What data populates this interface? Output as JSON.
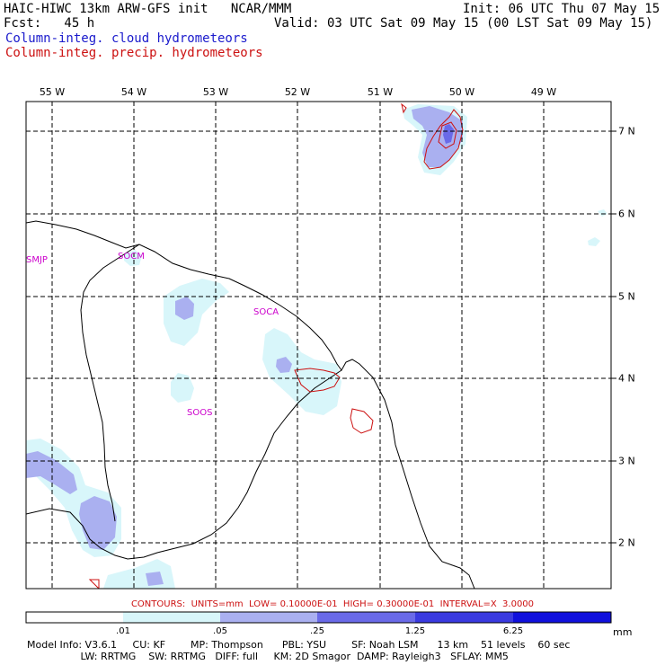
{
  "header": {
    "model_title": "HAIC-HIWC 13km ARW-GFS init   NCAR/MMM",
    "fcst": "Fcst:   45 h",
    "init": "Init: 06 UTC Thu 07 May 15",
    "valid": "Valid: 03 UTC Sat 09 May 15 (00 LST Sat 09 May 15)",
    "field_cloud": "Column-integ. cloud hydrometeors",
    "field_precip": "Column-integ. precip. hydrometeors"
  },
  "colors": {
    "cloud_text": "#1a1acc",
    "precip_text": "#cc1010",
    "shade_level_1": "#d8f6fa",
    "shade_level_2": "#aab0f0",
    "shade_level_3": "#6a6ae8",
    "shade_level_4": "#3a3ae0",
    "shade_level_5": "#1010dd",
    "station_label": "#cc00cc"
  },
  "map": {
    "longitude_labels": [
      "55 W",
      "54 W",
      "53 W",
      "52 W",
      "51 W",
      "50 W",
      "49 W"
    ],
    "latitude_labels": [
      "7 N",
      "6 N",
      "5 N",
      "4 N",
      "3 N",
      "2 N"
    ],
    "stations": [
      "SMJP",
      "SOCM",
      "SOCA",
      "SOOS"
    ]
  },
  "legend": {
    "contours": "CONTOURS:  UNITS=mm  LOW= 0.10000E-01  HIGH= 0.30000E-01  INTERVAL=X  3.0000",
    "colorbar_ticks": [
      ".01",
      ".05",
      ".25",
      "1.25",
      "6.25"
    ],
    "units": "mm"
  },
  "footer": {
    "line1": "Model Info: V3.6.1     CU: KF        MP: Thompson      PBL: YSU        SF: Noah LSM      13 km    51 levels    60 sec",
    "line2": "                 LW: RRTMG    SW: RRTMG   DIFF: full     KM: 2D Smagor  DAMP: Rayleigh3   SFLAY: MM5"
  }
}
